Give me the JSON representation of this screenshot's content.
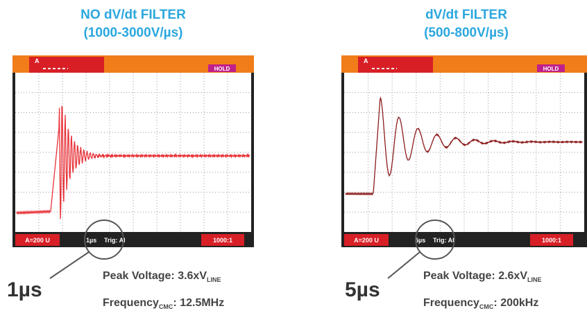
{
  "panels": [
    {
      "title": [
        "NO dV/dt FILTER",
        "(1000-3000V/µs)"
      ],
      "scope": {
        "channel": "A",
        "hold": "HOLD",
        "range": "A=200 U",
        "timebase": "1µs",
        "trigger": "Trig: AI",
        "probe": "1000:1"
      },
      "callout": "1µs",
      "peak": {
        "label": "Peak Voltage: 3.6xV",
        "sub": "LINE"
      },
      "frequency": {
        "label": "Frequency",
        "sub": "CMC",
        "value": ": 12.5MHz"
      }
    },
    {
      "title": [
        "dV/dt FILTER",
        "(500-800V/µs)"
      ],
      "scope": {
        "channel": "A",
        "hold": "HOLD",
        "range": "A=200 U",
        "timebase": "5µs",
        "trigger": "Trig: AI",
        "probe": "1000:1"
      },
      "callout": "5µs",
      "peak": {
        "label": "Peak Voltage: 2.6xV",
        "sub": "LINE"
      },
      "frequency": {
        "label": "Frequency",
        "sub": "CMC",
        "value": ": 200kHz"
      }
    }
  ]
}
